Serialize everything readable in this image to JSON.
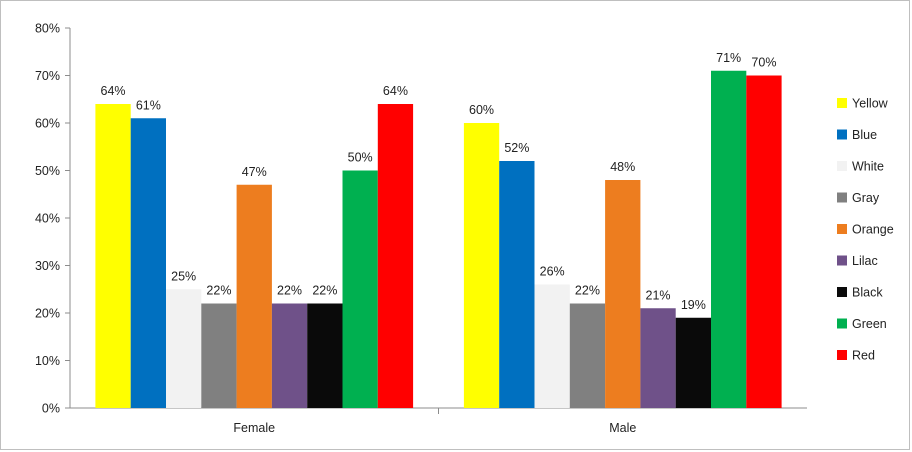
{
  "chart_data": {
    "type": "bar",
    "categories": [
      "Female",
      "Male"
    ],
    "series": [
      {
        "name": "Yellow",
        "color": "#ffff00",
        "values": [
          64,
          60
        ]
      },
      {
        "name": "Blue",
        "color": "#0070c0",
        "values": [
          61,
          52
        ]
      },
      {
        "name": "White",
        "color": "#f2f2f2",
        "values": [
          25,
          26
        ]
      },
      {
        "name": "Gray",
        "color": "#808080",
        "values": [
          22,
          22
        ]
      },
      {
        "name": "Orange",
        "color": "#ed7d1f",
        "values": [
          47,
          48
        ]
      },
      {
        "name": "Lilac",
        "color": "#6f5189",
        "values": [
          22,
          21
        ]
      },
      {
        "name": "Black",
        "color": "#0a0a0a",
        "values": [
          22,
          19
        ]
      },
      {
        "name": "Green",
        "color": "#00b050",
        "values": [
          50,
          71
        ]
      },
      {
        "name": "Red",
        "color": "#ff0000",
        "values": [
          64,
          70
        ]
      }
    ],
    "yticks": [
      "0%",
      "10%",
      "20%",
      "30%",
      "40%",
      "50%",
      "60%",
      "70%",
      "80%"
    ],
    "ylim": [
      0,
      80
    ],
    "value_suffix": "%",
    "grid": false,
    "legend": "right",
    "title": "",
    "xlabel": "",
    "ylabel": ""
  }
}
